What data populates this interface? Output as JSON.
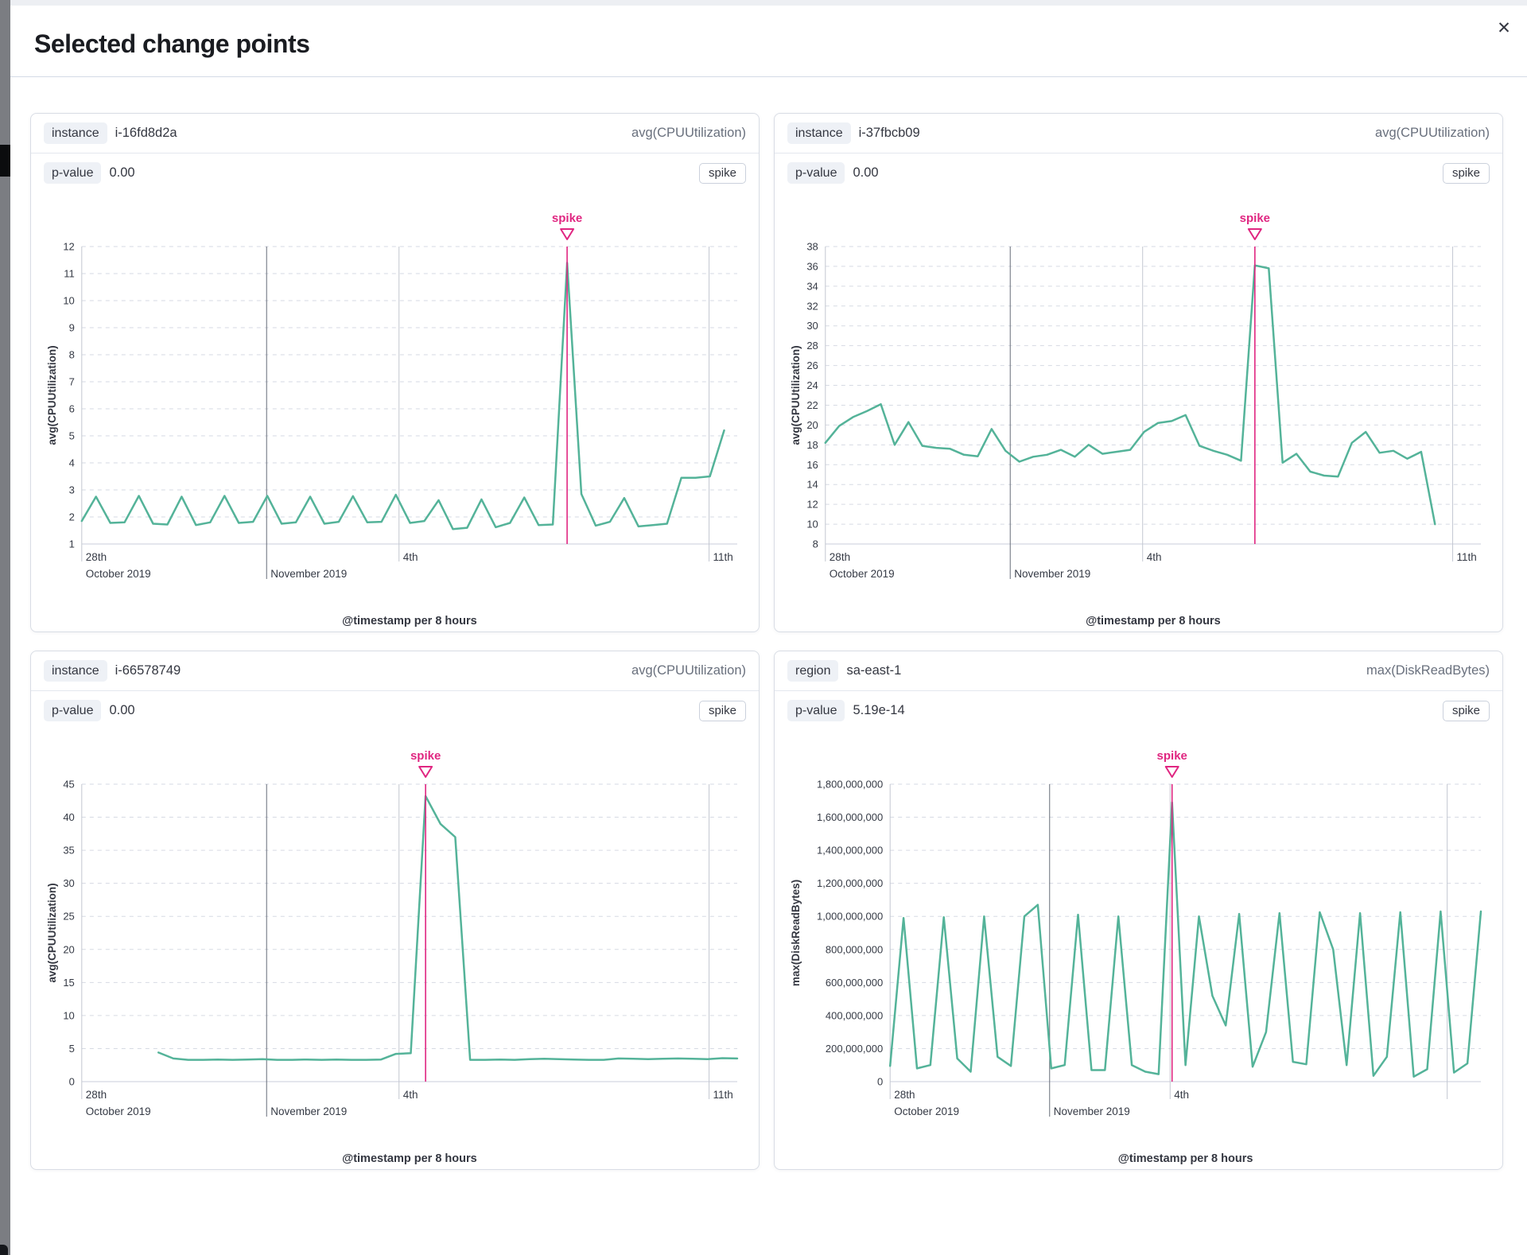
{
  "modal": {
    "title": "Selected change points",
    "close_icon": "✕"
  },
  "colors": {
    "line": "#54B399",
    "spike": "#e02681",
    "grid": "#d6dae3",
    "axis_line": "#c9cedb",
    "grid_minor": "#c3c7d1",
    "grid_major": "#666c78",
    "axis_text": "#353a45",
    "title_text": "#343741"
  },
  "panels": [
    {
      "field_label": "instance",
      "field_value": "i-16fd8d2a",
      "metric": "avg(CPUUtilization)",
      "p_label": "p-value",
      "p_value": "0.00",
      "badge": "spike"
    },
    {
      "field_label": "instance",
      "field_value": "i-37fbcb09",
      "metric": "avg(CPUUtilization)",
      "p_label": "p-value",
      "p_value": "0.00",
      "badge": "spike"
    },
    {
      "field_label": "instance",
      "field_value": "i-66578749",
      "metric": "avg(CPUUtilization)",
      "p_label": "p-value",
      "p_value": "0.00",
      "badge": "spike"
    },
    {
      "field_label": "region",
      "field_value": "sa-east-1",
      "metric": "max(DiskReadBytes)",
      "p_label": "p-value",
      "p_value": "5.19e-14",
      "badge": "spike"
    }
  ],
  "chart_data": [
    {
      "type": "line",
      "ylabel": "avg(CPUUtilization)",
      "xlabel": "@timestamp per 8 hours",
      "annotation": "spike",
      "y_min": 1,
      "y_max": 12,
      "y_step": 1,
      "y_format": "plain",
      "x_gridlines": [
        {
          "frac": 0.0,
          "major": false,
          "row1": "28th",
          "row2": "October 2019"
        },
        {
          "frac": 0.282,
          "major": true,
          "row2": "November 2019"
        },
        {
          "frac": 0.484,
          "major": false,
          "row1": "4th"
        },
        {
          "frac": 0.957,
          "major": false,
          "row1": "11th"
        }
      ],
      "data_start_frac": 0.0,
      "data_end_frac": 0.98,
      "spike_index": 34,
      "values": [
        1.85,
        2.75,
        1.78,
        1.8,
        2.78,
        1.75,
        1.72,
        2.75,
        1.7,
        1.8,
        2.78,
        1.78,
        1.82,
        2.78,
        1.75,
        1.8,
        2.75,
        1.75,
        1.82,
        2.77,
        1.8,
        1.82,
        2.82,
        1.78,
        1.85,
        2.62,
        1.55,
        1.6,
        2.65,
        1.62,
        1.78,
        2.72,
        1.7,
        1.72,
        11.4,
        2.85,
        1.68,
        1.82,
        2.7,
        1.65,
        1.7,
        1.75,
        3.45,
        3.45,
        3.5,
        5.2
      ]
    },
    {
      "type": "line",
      "ylabel": "avg(CPUUtilization)",
      "xlabel": "@timestamp per 8 hours",
      "annotation": "spike",
      "y_min": 8,
      "y_max": 38,
      "y_step": 2,
      "y_format": "plain",
      "x_gridlines": [
        {
          "frac": 0.0,
          "major": false,
          "row1": "28th",
          "row2": "October 2019"
        },
        {
          "frac": 0.282,
          "major": true,
          "row2": "November 2019"
        },
        {
          "frac": 0.484,
          "major": false,
          "row1": "4th"
        },
        {
          "frac": 0.957,
          "major": false,
          "row1": "11th"
        }
      ],
      "data_start_frac": 0.0,
      "data_end_frac": 0.93,
      "spike_index": 31,
      "values": [
        18.2,
        19.9,
        20.8,
        21.4,
        22.1,
        18.0,
        20.3,
        17.9,
        17.7,
        17.6,
        17.0,
        16.85,
        19.6,
        17.4,
        16.3,
        16.8,
        17.0,
        17.5,
        16.8,
        18.0,
        17.1,
        17.3,
        17.5,
        19.3,
        20.2,
        20.4,
        21.0,
        17.9,
        17.4,
        17.0,
        16.4,
        36.1,
        35.8,
        16.2,
        17.1,
        15.3,
        14.9,
        14.8,
        18.2,
        19.3,
        17.2,
        17.4,
        16.6,
        17.3,
        10.0
      ]
    },
    {
      "type": "line",
      "ylabel": "avg(CPUUtilization)",
      "xlabel": "@timestamp per 8 hours",
      "annotation": "spike",
      "y_min": 0,
      "y_max": 45,
      "y_step": 5,
      "y_format": "plain",
      "x_gridlines": [
        {
          "frac": 0.0,
          "major": false,
          "row1": "28th",
          "row2": "October 2019"
        },
        {
          "frac": 0.282,
          "major": true,
          "row2": "November 2019"
        },
        {
          "frac": 0.484,
          "major": false,
          "row1": "4th"
        },
        {
          "frac": 0.957,
          "major": false,
          "row1": "11th"
        }
      ],
      "data_start_frac": 0.117,
      "data_end_frac": 1.0,
      "spike_index": 18,
      "values": [
        4.4,
        3.5,
        3.3,
        3.3,
        3.35,
        3.3,
        3.35,
        3.4,
        3.3,
        3.3,
        3.35,
        3.3,
        3.35,
        3.3,
        3.3,
        3.35,
        4.2,
        4.3,
        43.2,
        39.0,
        37.0,
        3.3,
        3.3,
        3.35,
        3.3,
        3.4,
        3.45,
        3.4,
        3.35,
        3.3,
        3.3,
        3.5,
        3.45,
        3.4,
        3.45,
        3.5,
        3.45,
        3.4,
        3.55,
        3.5
      ]
    },
    {
      "type": "line",
      "ylabel": "max(DiskReadBytes)",
      "xlabel": "@timestamp per 8 hours",
      "annotation": "spike",
      "y_min": 0,
      "y_max": 1800000000,
      "y_step": 200000000,
      "y_format": "comma",
      "x_gridlines": [
        {
          "frac": 0.0,
          "major": false,
          "row1": "28th",
          "row2": "October 2019"
        },
        {
          "frac": 0.27,
          "major": true,
          "row2": "November 2019"
        },
        {
          "frac": 0.474,
          "major": false,
          "row1": "4th"
        },
        {
          "frac": 0.943,
          "major": false
        }
      ],
      "data_start_frac": 0.0,
      "data_end_frac": 1.0,
      "spike_index": 21,
      "values": [
        95000000,
        990000000,
        80000000,
        100000000,
        995000000,
        140000000,
        60000000,
        1000000000,
        150000000,
        95000000,
        1000000000,
        1070000000,
        80000000,
        100000000,
        1010000000,
        70000000,
        70000000,
        1000000000,
        100000000,
        60000000,
        45000000,
        1690000000,
        100000000,
        1000000000,
        520000000,
        340000000,
        1015000000,
        90000000,
        300000000,
        1020000000,
        120000000,
        105000000,
        1025000000,
        800000000,
        100000000,
        1020000000,
        35000000,
        150000000,
        1025000000,
        30000000,
        75000000,
        1030000000,
        55000000,
        110000000,
        1030000000
      ]
    }
  ]
}
